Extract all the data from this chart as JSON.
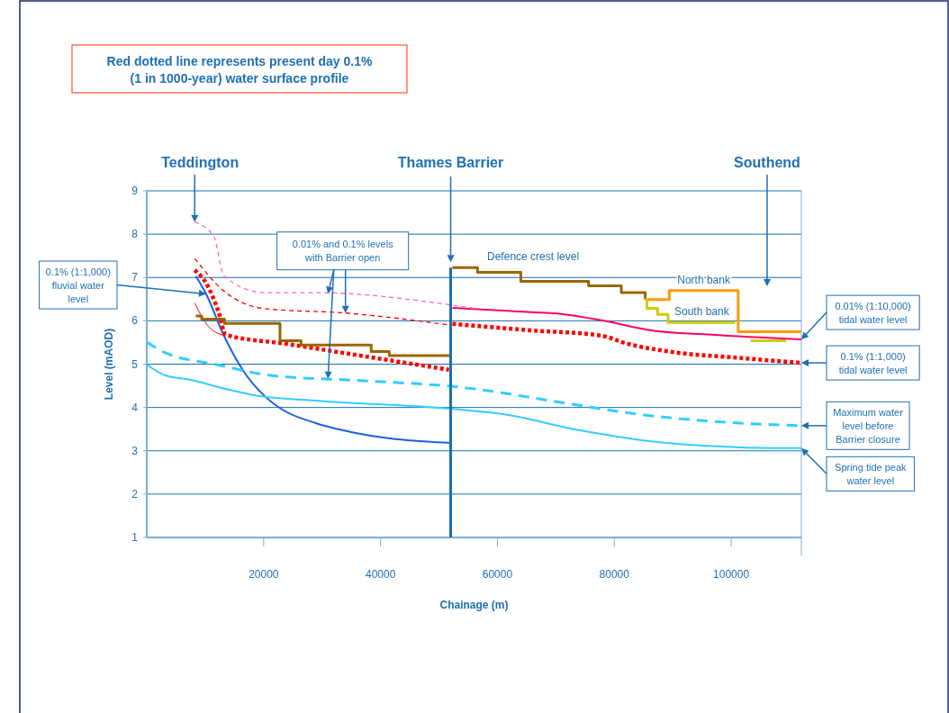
{
  "chart_data": {
    "type": "line",
    "title": "Red dotted line represents present day 0.1% (1 in 1000-year) water surface profile",
    "xlabel": "Chainage (m)",
    "ylabel": "Level (mAOD)",
    "xlim": [
      0,
      112000
    ],
    "ylim": [
      1,
      9
    ],
    "xticks": [
      20000,
      40000,
      60000,
      80000,
      100000
    ],
    "yticks": [
      1,
      2,
      3,
      4,
      5,
      6,
      7,
      8,
      9
    ],
    "grid": "y",
    "ref_lines": [
      {
        "axis": "x",
        "value": 52000,
        "label": "Thames Barrier",
        "color": "#1a6faf"
      }
    ],
    "annotations": [
      {
        "text": "Teddington",
        "x": 8200,
        "y": 8.28
      },
      "Southend",
      {
        "text": "0.01% and 0.1% levels with Barrier open",
        "x": 34000,
        "y": 6.18
      },
      {
        "text": "0.1% (1:1,000) fluvial water level",
        "x": 10150,
        "y": 6.62
      },
      {
        "text": "0.01% (1:10,000) tidal water level",
        "x": 112000,
        "y": 5.57
      },
      {
        "text": "0.1% (1:1,000) tidal water level",
        "x": 112000,
        "y": 5.03
      },
      {
        "text": "Maximum water level before Barrier closure",
        "x": 112000,
        "y": 3.58
      },
      {
        "text": "Spring tide peak water level",
        "x": 112000,
        "y": 3.06
      }
    ],
    "series": [
      {
        "color": "#1a5fe6",
        "line_style": "solid",
        "x": [
          8400,
          10150,
          13200,
          16600,
          20200,
          23200,
          28900,
          36600,
          52000
        ],
        "values": [
          7.03,
          6.62,
          5.66,
          4.83,
          4.26,
          3.95,
          3.64,
          3.39,
          3.18
        ]
      },
      {
        "color": "#33ccff",
        "line_style": "solid",
        "x": [
          0,
          3200,
          7400,
          13500,
          18600,
          28900,
          52000,
          60800,
          73500,
          86300,
          101700,
          112000
        ],
        "values": [
          4.99,
          4.74,
          4.64,
          4.43,
          4.28,
          4.16,
          3.97,
          3.85,
          3.49,
          3.22,
          3.08,
          3.06
        ]
      },
      {
        "color": "#33ccff",
        "line_style": "dashed",
        "x": [
          0,
          3200,
          12000,
          21200,
          36600,
          53500,
          73500,
          83800,
          96600,
          112000
        ],
        "values": [
          5.51,
          5.26,
          4.99,
          4.74,
          4.62,
          4.47,
          4.06,
          3.85,
          3.68,
          3.58
        ]
      },
      {
        "color": "#ff0000",
        "line_style": "dotted",
        "x": [
          8200,
          10200,
          12300,
          13500,
          23800,
          39200,
          51700,
          52000,
          52300,
          65800,
          77700,
          82300,
          88900,
          101700,
          112000
        ],
        "values": [
          7.17,
          6.86,
          6.2,
          5.68,
          5.47,
          5.14,
          4.87,
          null,
          5.93,
          5.78,
          5.66,
          5.47,
          5.3,
          5.14,
          5.03
        ]
      },
      {
        "color": "#ff0000",
        "line_style": "solid",
        "x": [
          8200,
          10200,
          13200
        ],
        "values": [
          6.41,
          5.93,
          5.66
        ]
      },
      {
        "color": "#ff0066",
        "line_style": "solid",
        "x": [
          52300,
          65800,
          70900,
          78600,
          86300,
          96600,
          112000
        ],
        "values": [
          6.3,
          6.2,
          6.16,
          5.99,
          5.78,
          5.68,
          5.57
        ]
      },
      {
        "color": "#ff0000",
        "line_style": "dashed",
        "x": [
          8200,
          13100,
          20200,
          34000,
          52000
        ],
        "values": [
          7.44,
          6.7,
          6.28,
          6.18,
          5.9
        ]
      },
      {
        "color": "#ff66cc",
        "line_style": "dashed",
        "x": [
          8200,
          11500,
          13200,
          20200,
          28900,
          53500,
          56600
        ],
        "values": [
          8.28,
          7.94,
          7.03,
          6.65,
          6.65,
          6.34,
          6.28
        ]
      },
      {
        "name": "Defence crest level",
        "type": "step",
        "color": "#996600",
        "line_style": "solid",
        "x": [
          8400,
          9400,
          13300,
          22800,
          26400,
          38400,
          41500,
          52000,
          52150,
          52300,
          56600,
          64000,
          75600,
          81200,
          84300,
          85300
        ],
        "values": [
          6.11,
          6.04,
          5.94,
          5.54,
          5.44,
          5.29,
          5.2,
          5.2,
          null,
          7.23,
          7.12,
          6.91,
          6.81,
          6.65,
          6.65,
          6.49
        ]
      },
      {
        "name": "North bank",
        "type": "step",
        "color": "#ff9900",
        "line_style": "solid",
        "x": [
          85300,
          89400,
          101200,
          112000
        ],
        "values": [
          6.49,
          6.7,
          5.75,
          5.75
        ]
      },
      {
        "name": "South bank",
        "type": "step",
        "color": "#cccc00",
        "line_style": "solid",
        "x": [
          85300,
          85600,
          87400,
          89200,
          100700,
          102000,
          103300,
          109400
        ],
        "values": [
          6.49,
          6.29,
          6.15,
          5.96,
          5.96,
          null,
          5.54,
          5.54
        ]
      }
    ]
  }
}
